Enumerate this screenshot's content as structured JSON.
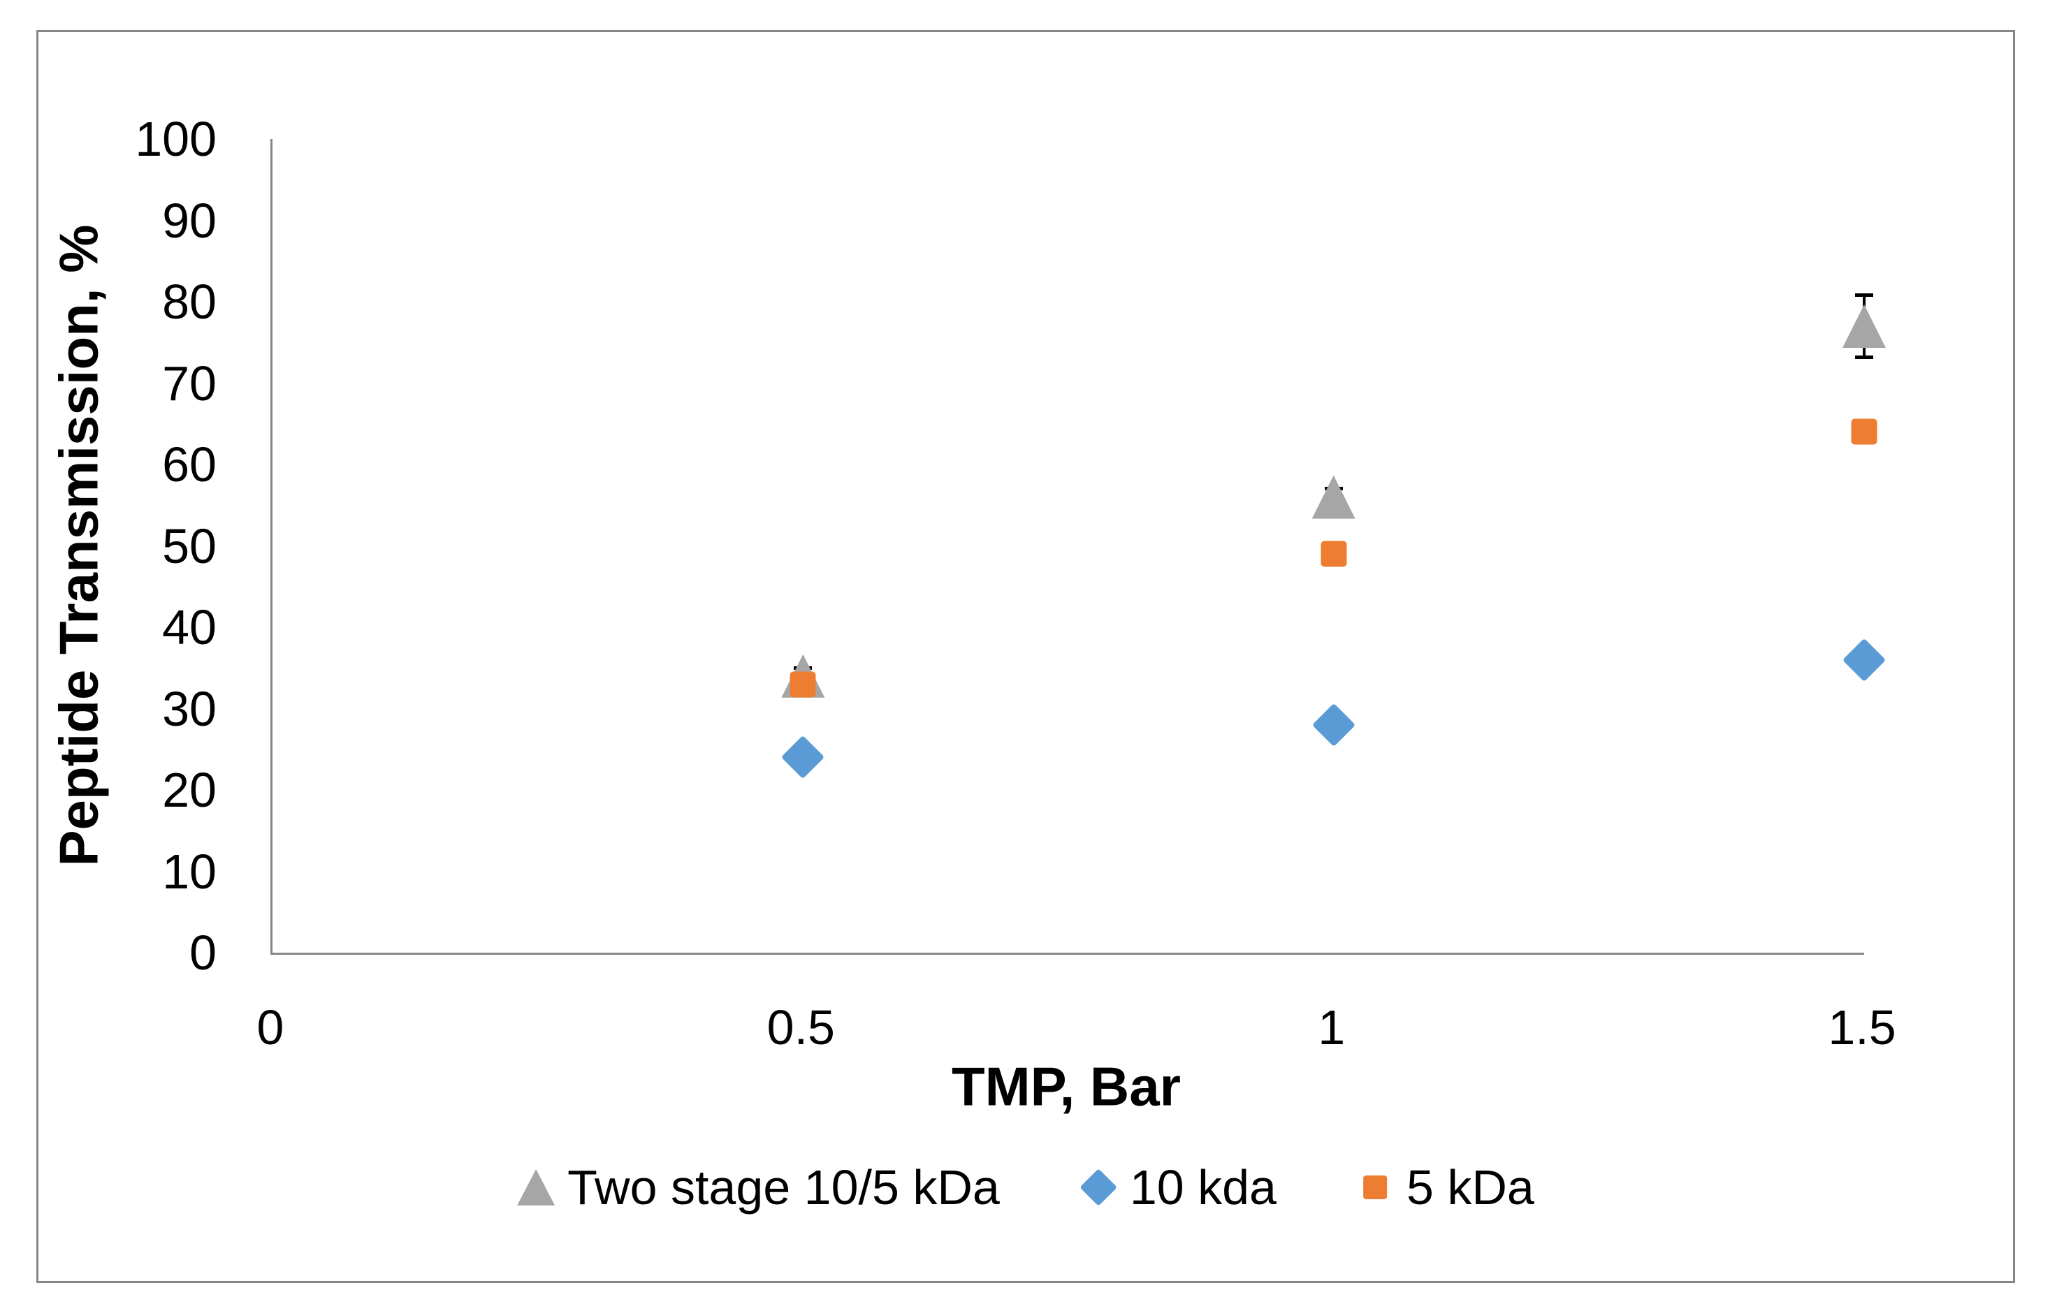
{
  "figure": {
    "border_color": "#868686",
    "background_color": "#ffffff",
    "axis_line_color": "#868686",
    "error_bar_color": "#000000"
  },
  "chart_data": {
    "type": "scatter",
    "title": "",
    "xlabel": "TMP, Bar",
    "ylabel": "Peptide Transmission, %",
    "xlim": [
      0,
      1.5
    ],
    "ylim": [
      0,
      100
    ],
    "grid": false,
    "legend_position": "bottom",
    "x_tick_values": [
      0,
      0.5,
      1,
      1.5
    ],
    "x_tick_labels": [
      "0",
      "0.5",
      "1",
      "1.5"
    ],
    "y_tick_values": [
      0,
      10,
      20,
      30,
      40,
      50,
      60,
      70,
      80,
      90,
      100
    ],
    "y_tick_labels": [
      "0",
      "10",
      "20",
      "30",
      "40",
      "50",
      "60",
      "70",
      "80",
      "90",
      "100"
    ],
    "x": [
      0.5,
      1,
      1.5
    ],
    "series": [
      {
        "name": "Two stage 10/5 kDa",
        "marker": "triangle",
        "color": "#A6A6A6",
        "values": [
          34,
          56,
          77
        ],
        "y_err": [
          1,
          1,
          3.8
        ]
      },
      {
        "name": "10 kda",
        "marker": "diamond",
        "color": "#5B9BD5",
        "values": [
          24,
          28,
          36
        ],
        "y_err": [
          0,
          0,
          0
        ]
      },
      {
        "name": "5 kDa",
        "marker": "square",
        "color": "#ED7D31",
        "values": [
          33,
          49,
          64
        ],
        "y_err": [
          0.9,
          0.5,
          0
        ]
      }
    ]
  }
}
